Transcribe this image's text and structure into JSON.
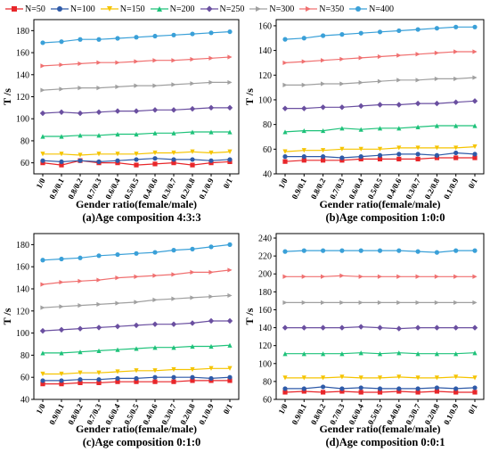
{
  "legend": [
    "N=50",
    "N=100",
    "N=150",
    "N=200",
    "N=250",
    "N=300",
    "N=350",
    "N=400"
  ],
  "series_colors": [
    "#e8262a",
    "#2e5aa8",
    "#f5c400",
    "#1ec27a",
    "#6a4fa0",
    "#a0a0a0",
    "#f07070",
    "#3aa0d8"
  ],
  "series_markers": [
    "square",
    "circle",
    "triangle-down",
    "triangle-up",
    "diamond",
    "triangle-right",
    "triangle-right",
    "circle"
  ],
  "chart_data": [
    {
      "type": "line",
      "title": "(a)Age composition 4:3:3",
      "xlabel": "Gender ratio(female/male)",
      "ylabel": "T /s",
      "ylim": [
        50,
        190
      ],
      "yticks": [
        60,
        80,
        100,
        120,
        140,
        160,
        180
      ],
      "categories": [
        "1/0",
        "0.9/0.1",
        "0.8/0.2",
        "0.7/0.3",
        "0.6/0.4",
        "0.5/0.5",
        "0.4/0.6",
        "0.3/0.7",
        "0.2/0.8",
        "0.1/0.9",
        "0/1"
      ],
      "series": [
        {
          "name": "N=50",
          "values": [
            60,
            58,
            62,
            60,
            60,
            58,
            59,
            60,
            58,
            60,
            61
          ]
        },
        {
          "name": "N=100",
          "values": [
            62,
            61,
            62,
            61,
            62,
            63,
            64,
            63,
            63,
            62,
            63
          ]
        },
        {
          "name": "N=150",
          "values": [
            68,
            68,
            67,
            68,
            68,
            68,
            69,
            69,
            70,
            69,
            70
          ]
        },
        {
          "name": "N=200",
          "values": [
            84,
            84,
            85,
            85,
            86,
            86,
            87,
            87,
            88,
            88,
            88
          ]
        },
        {
          "name": "N=250",
          "values": [
            105,
            106,
            105,
            106,
            107,
            107,
            108,
            108,
            109,
            110,
            110
          ]
        },
        {
          "name": "N=300",
          "values": [
            126,
            127,
            128,
            128,
            129,
            130,
            130,
            131,
            132,
            133,
            133
          ]
        },
        {
          "name": "N=350",
          "values": [
            148,
            149,
            150,
            151,
            151,
            152,
            153,
            153,
            154,
            155,
            156
          ]
        },
        {
          "name": "N=400",
          "values": [
            169,
            170,
            172,
            172,
            173,
            174,
            175,
            176,
            177,
            178,
            179
          ]
        }
      ]
    },
    {
      "type": "line",
      "title": "(b)Age composition 1:0:0",
      "xlabel": "Gender ratio(female/male)",
      "ylabel": "T /s",
      "ylim": [
        40,
        165
      ],
      "yticks": [
        40,
        60,
        80,
        100,
        120,
        140,
        160
      ],
      "categories": [
        "1/0",
        "0.9/0.1",
        "0.8/0.2",
        "0.7/0.3",
        "0.6/0.4",
        "0.5/0.5",
        "0.4/0.6",
        "0.3/0.7",
        "0.2/0.8",
        "0.1/0.9",
        "0/1"
      ],
      "series": [
        {
          "name": "N=50",
          "values": [
            50,
            51,
            51,
            51,
            52,
            52,
            52,
            52,
            53,
            53,
            53
          ]
        },
        {
          "name": "N=100",
          "values": [
            54,
            54,
            54,
            53,
            54,
            55,
            56,
            56,
            55,
            57,
            56
          ]
        },
        {
          "name": "N=150",
          "values": [
            58,
            59,
            59,
            60,
            60,
            60,
            61,
            61,
            61,
            61,
            62
          ]
        },
        {
          "name": "N=200",
          "values": [
            74,
            75,
            75,
            77,
            76,
            77,
            77,
            78,
            79,
            79,
            79
          ]
        },
        {
          "name": "N=250",
          "values": [
            93,
            93,
            94,
            94,
            95,
            96,
            96,
            97,
            97,
            98,
            99
          ]
        },
        {
          "name": "N=300",
          "values": [
            112,
            112,
            113,
            113,
            114,
            115,
            116,
            116,
            117,
            117,
            118
          ]
        },
        {
          "name": "N=350",
          "values": [
            130,
            131,
            132,
            133,
            134,
            135,
            136,
            137,
            138,
            139,
            139
          ]
        },
        {
          "name": "N=400",
          "values": [
            149,
            150,
            152,
            153,
            154,
            155,
            156,
            157,
            158,
            159,
            159
          ]
        }
      ]
    },
    {
      "type": "line",
      "title": "(c)Age composition 0:1:0",
      "xlabel": "Gender ratio(female/male)",
      "ylabel": "T /s",
      "ylim": [
        40,
        190
      ],
      "yticks": [
        40,
        60,
        80,
        100,
        120,
        140,
        160,
        180
      ],
      "categories": [
        "1/0",
        "0.9/0.1",
        "0.8/0.2",
        "0.7/0.3",
        "0.6/0.4",
        "0.5/0.5",
        "0.4/0.6",
        "0.3/0.7",
        "0.2/0.8",
        "0.1/0.9",
        "0/1"
      ],
      "series": [
        {
          "name": "N=50",
          "values": [
            54,
            54,
            55,
            55,
            56,
            56,
            56,
            56,
            57,
            57,
            57
          ]
        },
        {
          "name": "N=100",
          "values": [
            57,
            57,
            58,
            58,
            59,
            59,
            60,
            60,
            60,
            59,
            60
          ]
        },
        {
          "name": "N=150",
          "values": [
            63,
            63,
            64,
            64,
            65,
            66,
            66,
            67,
            67,
            68,
            68
          ]
        },
        {
          "name": "N=200",
          "values": [
            82,
            82,
            83,
            84,
            85,
            86,
            87,
            87,
            88,
            88,
            89
          ]
        },
        {
          "name": "N=250",
          "values": [
            102,
            103,
            104,
            105,
            106,
            107,
            108,
            108,
            109,
            111,
            111
          ]
        },
        {
          "name": "N=300",
          "values": [
            123,
            124,
            125,
            126,
            127,
            128,
            130,
            131,
            132,
            133,
            134
          ]
        },
        {
          "name": "N=350",
          "values": [
            144,
            146,
            147,
            148,
            150,
            151,
            152,
            153,
            155,
            155,
            157
          ]
        },
        {
          "name": "N=400",
          "values": [
            166,
            167,
            168,
            170,
            171,
            172,
            173,
            175,
            176,
            178,
            180
          ]
        }
      ]
    },
    {
      "type": "line",
      "title": "(d)Age composition 0:0:1",
      "xlabel": "Gender ratio(female/male)",
      "ylabel": "T /s",
      "ylim": [
        60,
        245
      ],
      "yticks": [
        60,
        80,
        100,
        120,
        140,
        160,
        180,
        200,
        220,
        240
      ],
      "categories": [
        "1/0",
        "0.9/0.1",
        "0.8/0.2",
        "0.7/0.3",
        "0.6/0.4",
        "0.5/0.5",
        "0.4/0.6",
        "0.3/0.7",
        "0.2/0.8",
        "0.1/0.9",
        "0/1"
      ],
      "series": [
        {
          "name": "N=50",
          "values": [
            68,
            69,
            68,
            69,
            68,
            68,
            69,
            68,
            69,
            68,
            68
          ]
        },
        {
          "name": "N=100",
          "values": [
            72,
            72,
            74,
            72,
            73,
            72,
            72,
            72,
            73,
            72,
            73
          ]
        },
        {
          "name": "N=150",
          "values": [
            84,
            84,
            84,
            85,
            84,
            84,
            85,
            84,
            84,
            85,
            84
          ]
        },
        {
          "name": "N=200",
          "values": [
            111,
            111,
            111,
            111,
            112,
            111,
            112,
            111,
            111,
            111,
            112
          ]
        },
        {
          "name": "N=250",
          "values": [
            140,
            140,
            140,
            140,
            141,
            140,
            139,
            140,
            140,
            140,
            140
          ]
        },
        {
          "name": "N=300",
          "values": [
            168,
            168,
            168,
            168,
            168,
            168,
            168,
            168,
            168,
            168,
            168
          ]
        },
        {
          "name": "N=350",
          "values": [
            197,
            197,
            197,
            198,
            197,
            197,
            197,
            197,
            197,
            197,
            197
          ]
        },
        {
          "name": "N=400",
          "values": [
            225,
            226,
            226,
            226,
            226,
            226,
            226,
            225,
            224,
            226,
            226
          ]
        }
      ]
    }
  ]
}
